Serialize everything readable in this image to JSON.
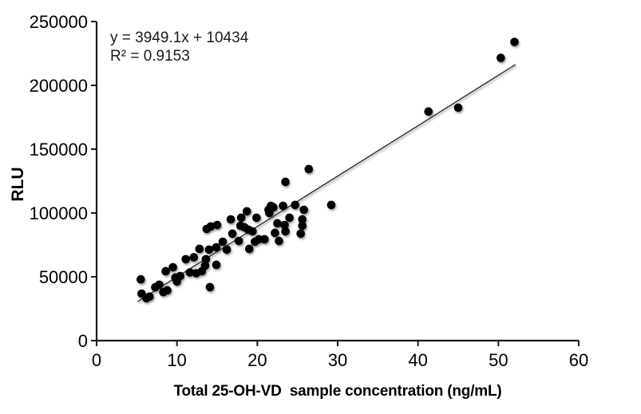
{
  "chart_data": {
    "type": "scatter",
    "title": "",
    "xlabel": "Total 25-OH-VD  sample concentration (ng/mL)",
    "ylabel": "RLU",
    "xlim": [
      0,
      60
    ],
    "ylim": [
      0,
      250000
    ],
    "x_ticks": [
      0,
      10,
      20,
      30,
      40,
      50,
      60
    ],
    "y_ticks": [
      0,
      50000,
      100000,
      150000,
      200000,
      250000
    ],
    "grid": false,
    "legend": "none",
    "annotation": {
      "equation": "y = 3949.1x + 10434",
      "r_squared": "R² = 0.9153"
    },
    "trendline": {
      "slope": 3949.1,
      "intercept": 10434,
      "x_start": 5.1,
      "x_end": 52.15,
      "color": "#26313f"
    },
    "marker_color": "#000000",
    "axis_color": "#1a1a1a",
    "points": [
      [
        5.5,
        48000
      ],
      [
        5.6,
        36800
      ],
      [
        6.2,
        33200
      ],
      [
        6.6,
        34500
      ],
      [
        7.3,
        41800
      ],
      [
        7.8,
        43800
      ],
      [
        8.3,
        38000
      ],
      [
        8.6,
        54400
      ],
      [
        8.8,
        39400
      ],
      [
        9.5,
        57500
      ],
      [
        9.8,
        49400
      ],
      [
        10.0,
        46300
      ],
      [
        10.4,
        50600
      ],
      [
        11.1,
        63800
      ],
      [
        11.6,
        53400
      ],
      [
        12.1,
        65300
      ],
      [
        12.4,
        52800
      ],
      [
        12.8,
        71900
      ],
      [
        13.1,
        54400
      ],
      [
        13.5,
        58800
      ],
      [
        13.6,
        63800
      ],
      [
        13.7,
        87500
      ],
      [
        14.0,
        71300
      ],
      [
        14.1,
        41900
      ],
      [
        14.2,
        89400
      ],
      [
        14.9,
        73100
      ],
      [
        14.9,
        59400
      ],
      [
        15.0,
        90600
      ],
      [
        15.7,
        77500
      ],
      [
        16.2,
        71300
      ],
      [
        16.7,
        95000
      ],
      [
        16.9,
        83800
      ],
      [
        17.7,
        78100
      ],
      [
        17.9,
        90000
      ],
      [
        18.0,
        96300
      ],
      [
        18.4,
        88800
      ],
      [
        18.7,
        101300
      ],
      [
        18.9,
        86900
      ],
      [
        19.0,
        71900
      ],
      [
        19.4,
        85600
      ],
      [
        19.7,
        77500
      ],
      [
        19.9,
        96300
      ],
      [
        20.2,
        79400
      ],
      [
        20.9,
        79400
      ],
      [
        21.4,
        102500
      ],
      [
        21.5,
        100000
      ],
      [
        21.7,
        105600
      ],
      [
        22.0,
        104400
      ],
      [
        22.2,
        84400
      ],
      [
        22.5,
        91900
      ],
      [
        22.7,
        78100
      ],
      [
        23.2,
        105600
      ],
      [
        23.4,
        90600
      ],
      [
        23.5,
        85600
      ],
      [
        23.5,
        124400
      ],
      [
        24.0,
        96300
      ],
      [
        24.7,
        106300
      ],
      [
        25.4,
        83800
      ],
      [
        25.6,
        95000
      ],
      [
        25.6,
        90000
      ],
      [
        25.8,
        102500
      ],
      [
        26.4,
        134400
      ],
      [
        29.2,
        106300
      ],
      [
        41.3,
        179500
      ],
      [
        45.0,
        182500
      ],
      [
        50.3,
        221500
      ],
      [
        52.0,
        234000
      ]
    ]
  }
}
